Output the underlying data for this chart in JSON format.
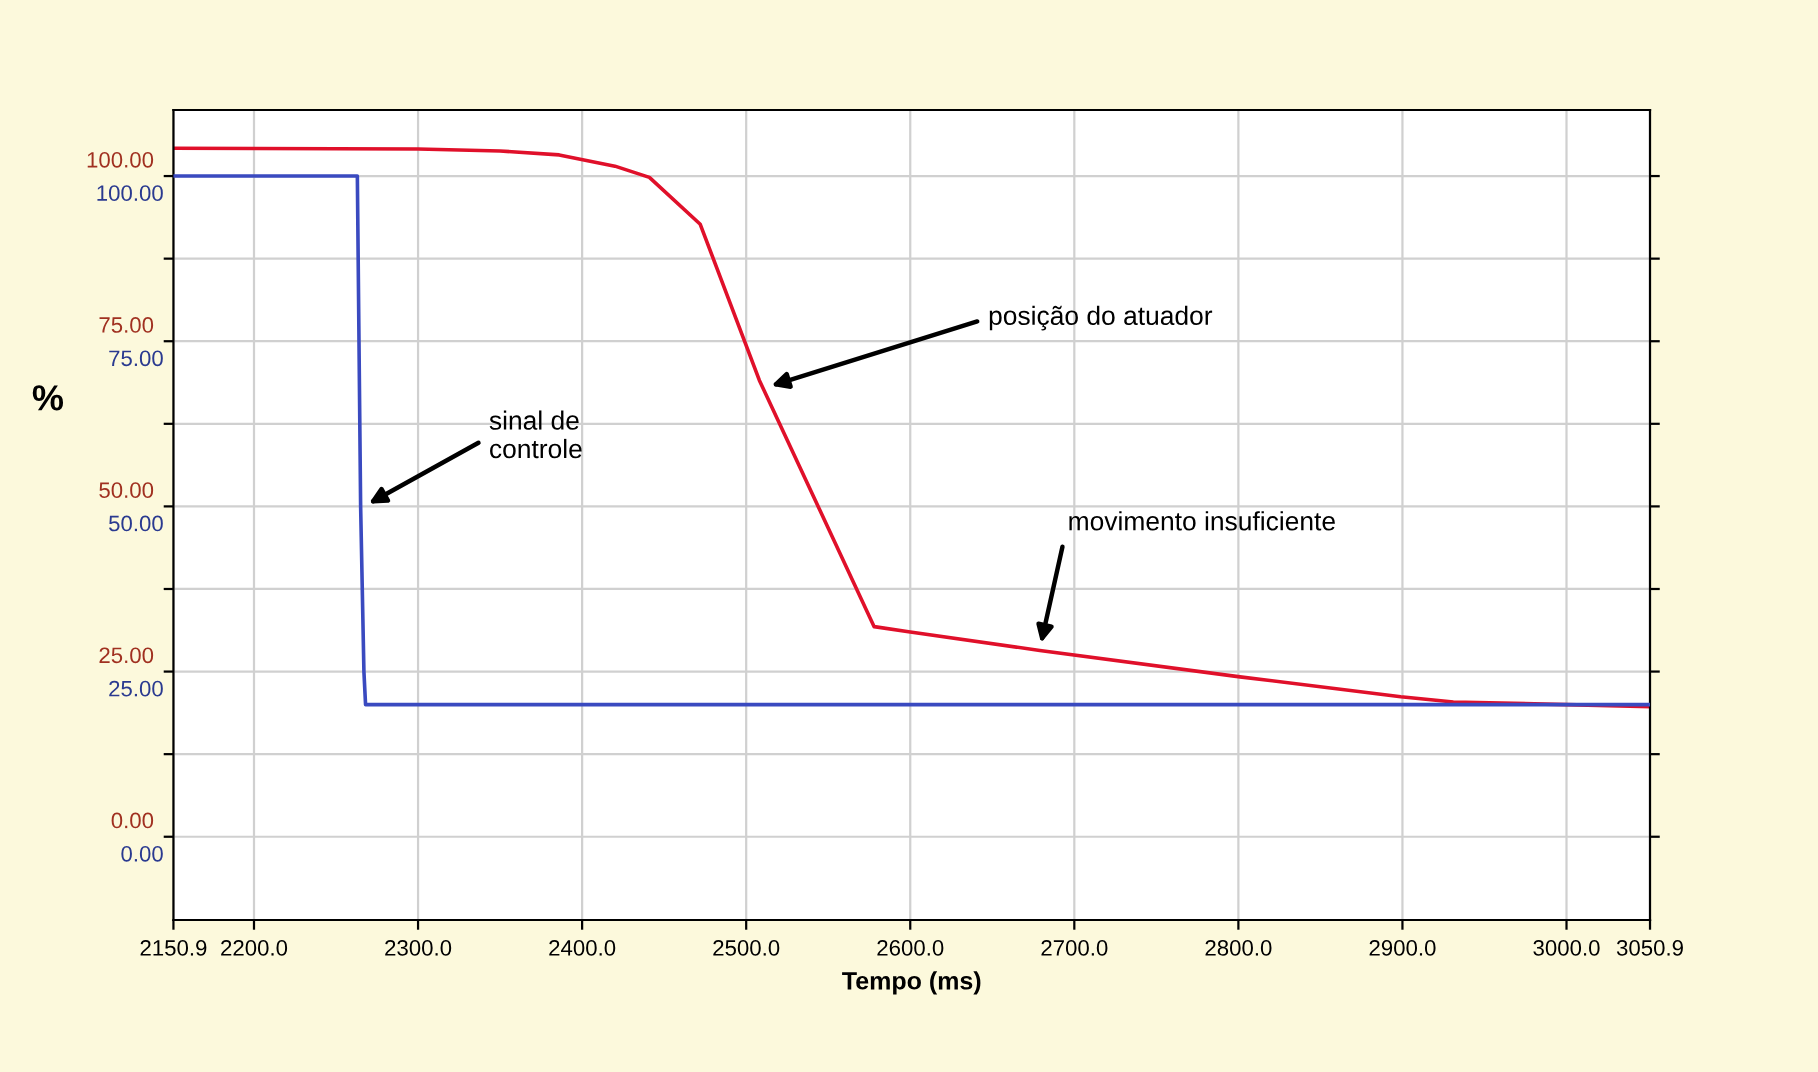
{
  "chart_data": {
    "type": "line",
    "xlabel": "Tempo (ms)",
    "ylabel": "%",
    "series": [
      {
        "color": "#e0102a",
        "axis": "y",
        "x": [
          2150.9,
          2300,
          2350,
          2386,
          2420,
          2441,
          2472,
          2508,
          2578,
          2600,
          2679,
          2801,
          2899,
          2931,
          3050.9
        ],
        "values": [
          104.2,
          104.1,
          103.8,
          103.2,
          101.5,
          99.8,
          92.7,
          69.1,
          31.8,
          31.0,
          28.2,
          24.2,
          21.2,
          20.4,
          19.7
        ]
      },
      {
        "color": "#3a4ac0",
        "axis": "y2",
        "x": [
          2150.9,
          2263,
          2265,
          2267,
          2268,
          3050.9
        ],
        "values": [
          100,
          100,
          50,
          25,
          20,
          20
        ]
      }
    ],
    "xlim": [
      2150.9,
      3050.9
    ],
    "xticks": [
      {
        "value": 2150.9,
        "label": "2150.9"
      },
      {
        "value": 2200,
        "label": "2200.0"
      },
      {
        "value": 2300,
        "label": "2300.0"
      },
      {
        "value": 2400,
        "label": "2400.0"
      },
      {
        "value": 2500,
        "label": "2500.0"
      },
      {
        "value": 2600,
        "label": "2600.0"
      },
      {
        "value": 2700,
        "label": "2700.0"
      },
      {
        "value": 2800,
        "label": "2800.0"
      },
      {
        "value": 2900,
        "label": "2900.0"
      },
      {
        "value": 3000,
        "label": "3000.0"
      },
      {
        "value": 3050.9,
        "label": "3050.9"
      }
    ],
    "ylim": [
      -12.6,
      110
    ],
    "yticks": [
      {
        "value": 0,
        "label": "0.00"
      },
      {
        "value": 12.5,
        "label": null
      },
      {
        "value": 25,
        "label": "25.00"
      },
      {
        "value": 37.5,
        "label": null
      },
      {
        "value": 50,
        "label": "50.00"
      },
      {
        "value": 62.5,
        "label": null
      },
      {
        "value": 75,
        "label": "75.00"
      },
      {
        "value": 87.5,
        "label": null
      },
      {
        "value": 100,
        "label": "100.00"
      }
    ],
    "y2lim": [
      -12.6,
      110
    ],
    "y2ticks": [
      {
        "value": 0,
        "label": "0.00"
      },
      {
        "value": 25,
        "label": "25.00"
      },
      {
        "value": 50,
        "label": "50.00"
      },
      {
        "value": 75,
        "label": "75.00"
      },
      {
        "value": 100,
        "label": "100.00"
      }
    ],
    "grid": true,
    "line_style": "solid",
    "marker": "none",
    "annotations": [
      {
        "text": "sinal de\ncontrole",
        "x": 2267,
        "y": 50
      },
      {
        "text": "posição do atuador",
        "x": 2512,
        "y": 68
      },
      {
        "text": "movimento insuficiente",
        "x": 2679,
        "y": 28.5
      }
    ]
  }
}
